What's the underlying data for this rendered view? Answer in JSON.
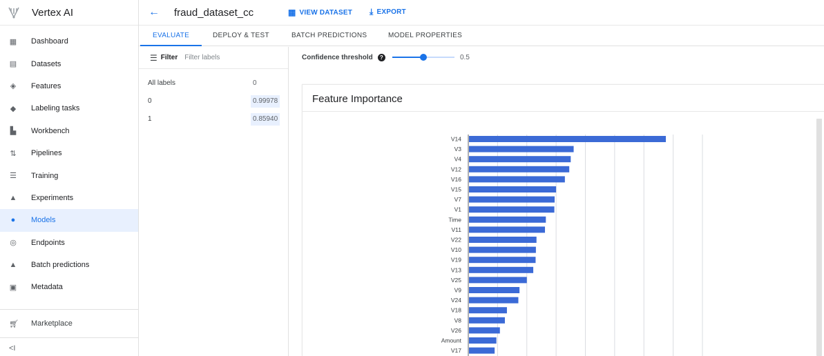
{
  "app": {
    "name": "Vertex AI"
  },
  "sidebar": {
    "items": [
      {
        "label": "Dashboard",
        "icon": "dashboard-icon",
        "glyph": "▦"
      },
      {
        "label": "Datasets",
        "icon": "datasets-icon",
        "glyph": "▤"
      },
      {
        "label": "Features",
        "icon": "features-icon",
        "glyph": "◈"
      },
      {
        "label": "Labeling tasks",
        "icon": "label-icon",
        "glyph": "◆"
      },
      {
        "label": "Workbench",
        "icon": "notebook-icon",
        "glyph": "▙"
      },
      {
        "label": "Pipelines",
        "icon": "pipelines-icon",
        "glyph": "⇅"
      },
      {
        "label": "Training",
        "icon": "training-icon",
        "glyph": "☰"
      },
      {
        "label": "Experiments",
        "icon": "experiments-icon",
        "glyph": "▲"
      },
      {
        "label": "Models",
        "icon": "models-icon",
        "glyph": "●",
        "active": true
      },
      {
        "label": "Endpoints",
        "icon": "endpoints-icon",
        "glyph": "◎"
      },
      {
        "label": "Batch predictions",
        "icon": "bell-icon",
        "glyph": "▲"
      },
      {
        "label": "Metadata",
        "icon": "metadata-icon",
        "glyph": "▣"
      }
    ],
    "marketplace": "Marketplace",
    "collapse_glyph": "<I"
  },
  "header": {
    "title": "fraud_dataset_cc",
    "view_dataset": "VIEW DATASET",
    "export": "EXPORT"
  },
  "tabs": [
    "EVALUATE",
    "DEPLOY & TEST",
    "BATCH PREDICTIONS",
    "MODEL PROPERTIES"
  ],
  "active_tab": "EVALUATE",
  "filter": {
    "label": "Filter",
    "placeholder": "Filter labels"
  },
  "labels": [
    {
      "name": "All labels",
      "value": "0"
    },
    {
      "name": "0",
      "value": "0.99978"
    },
    {
      "name": "1",
      "value": "0.85940"
    }
  ],
  "confidence": {
    "label": "Confidence threshold",
    "value": "0.5",
    "level": 0.5
  },
  "card": {
    "title": "Feature Importance"
  },
  "colors": {
    "accent": "#1a73e8",
    "bar": "#3b6ad6"
  },
  "chart_data": {
    "type": "bar",
    "orientation": "horizontal",
    "title": "Feature Importance",
    "categories": [
      "V14",
      "V3",
      "V4",
      "V12",
      "V16",
      "V15",
      "V7",
      "V1",
      "Time",
      "V11",
      "V22",
      "V10",
      "V19",
      "V13",
      "V25",
      "V9",
      "V24",
      "V18",
      "V8",
      "V26",
      "Amount",
      "V17"
    ],
    "values": [
      0.675,
      0.36,
      0.35,
      0.345,
      0.33,
      0.3,
      0.295,
      0.294,
      0.265,
      0.262,
      0.233,
      0.231,
      0.23,
      0.222,
      0.2,
      0.175,
      0.171,
      0.132,
      0.125,
      0.108,
      0.096,
      0.09
    ],
    "xlim": [
      0,
      0.8
    ],
    "grid": true
  }
}
